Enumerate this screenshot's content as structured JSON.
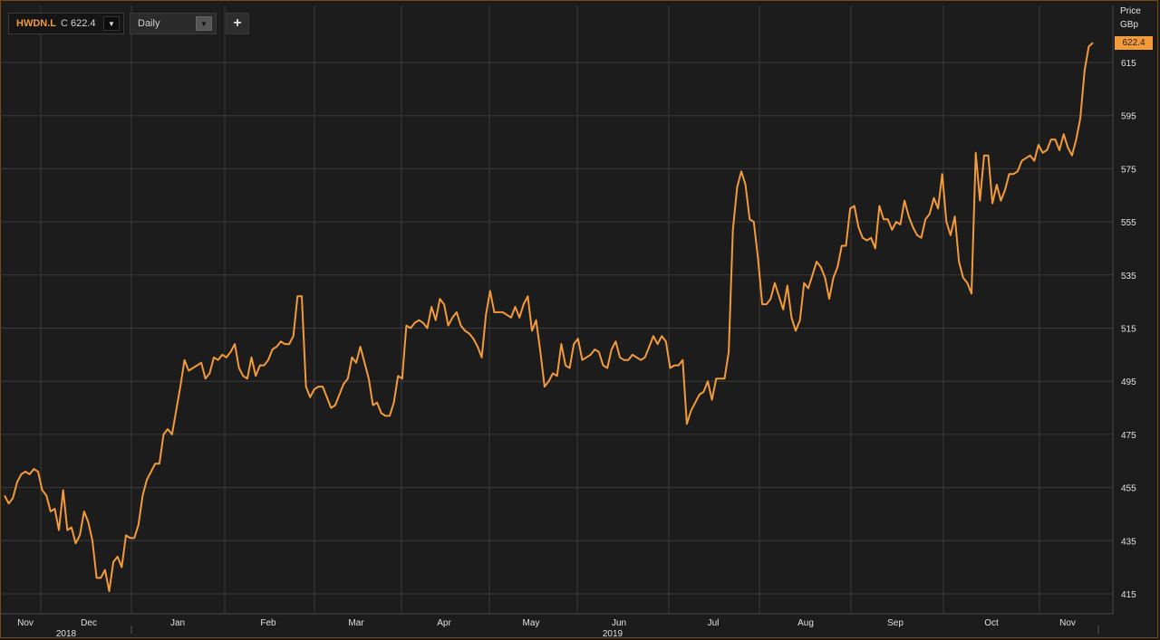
{
  "toolbar": {
    "symbol": "HWDN.L",
    "close_prefix": "C",
    "close_value": "622.4",
    "interval": "Daily",
    "add_icon": "plus-icon",
    "dropdown_icon": "triangle-down-icon"
  },
  "colors": {
    "background": "#1c1c1c",
    "line": "#f39a3a",
    "grid": "#3a3a3a",
    "text": "#e0e0e0"
  },
  "chart_data": {
    "type": "line",
    "title": "",
    "ylabel": "Price",
    "yunit": "GBp",
    "last_price_label": "622.4",
    "ylim": [
      410,
      628
    ],
    "y_ticks": [
      415,
      435,
      455,
      475,
      495,
      515,
      535,
      555,
      575,
      595,
      615
    ],
    "x_ticks": [
      "Nov",
      "Dec",
      "Jan",
      "Feb",
      "Mar",
      "Apr",
      "May",
      "Jun",
      "Jul",
      "Aug",
      "Sep",
      "Oct",
      "Nov"
    ],
    "x_year_labels": [
      "2018",
      "2019"
    ],
    "grid": true,
    "series": [
      {
        "values": [
          452,
          449,
          451,
          457,
          460,
          461,
          460,
          462,
          461,
          454,
          452,
          446,
          447,
          439,
          454,
          439,
          440,
          434,
          437,
          446,
          442,
          435,
          421,
          421,
          424,
          416,
          427,
          429,
          425,
          437,
          436,
          436,
          441,
          452,
          458,
          461,
          464,
          464,
          475,
          477,
          475,
          484,
          493,
          503,
          499,
          500,
          501,
          502,
          496,
          498,
          504,
          503,
          505,
          504,
          506,
          509,
          500,
          497,
          496,
          504,
          497,
          501,
          501,
          503,
          507,
          508,
          510,
          509,
          509,
          512,
          527,
          527,
          493,
          489,
          492,
          493,
          493,
          489,
          485,
          486,
          490,
          494,
          496,
          504,
          502,
          508,
          502,
          496,
          486,
          487,
          483,
          482,
          482,
          487,
          497,
          496,
          516,
          515,
          517,
          518,
          517,
          515,
          523,
          518,
          526,
          524,
          516,
          519,
          521,
          516,
          514,
          513,
          511,
          508,
          504,
          520,
          529,
          521,
          521,
          521,
          520,
          519,
          523,
          519,
          524,
          527,
          514,
          518,
          506,
          493,
          495,
          498,
          497,
          509,
          501,
          500,
          509,
          511,
          503,
          504,
          505,
          507,
          506,
          501,
          500,
          507,
          510,
          504,
          503,
          503,
          505,
          504,
          503,
          504,
          508,
          512,
          509,
          512,
          510,
          500,
          501,
          501,
          503,
          479,
          484,
          487,
          490,
          491,
          495,
          488,
          496,
          496,
          496,
          506,
          552,
          568,
          574,
          569,
          556,
          555,
          541,
          524,
          524,
          526,
          532,
          527,
          522,
          531,
          519,
          514,
          518,
          532,
          530,
          535,
          540,
          538,
          534,
          526,
          534,
          538,
          546,
          546,
          560,
          561,
          553,
          549,
          548,
          549,
          545,
          561,
          556,
          556,
          552,
          555,
          554,
          563,
          557,
          553,
          550,
          549,
          556,
          558,
          564,
          560,
          573,
          555,
          550,
          557,
          540,
          534,
          532,
          528,
          581,
          563,
          580,
          580,
          562,
          569,
          563,
          567,
          573,
          573,
          574,
          578,
          579,
          580,
          578,
          584,
          581,
          582,
          586,
          586,
          582,
          588,
          583,
          580,
          586,
          594,
          612,
          621,
          622.4
        ]
      }
    ]
  }
}
